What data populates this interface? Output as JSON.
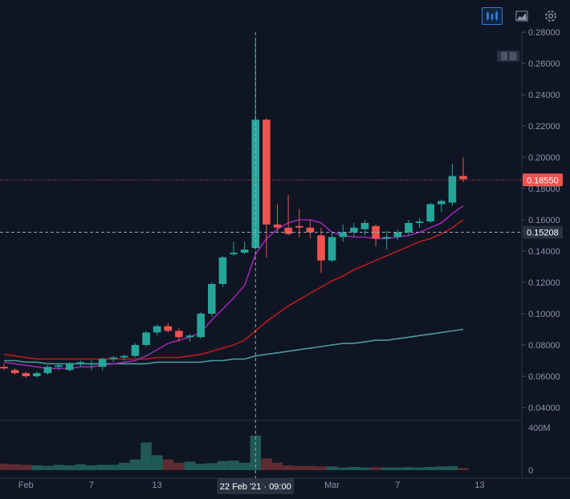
{
  "toolbar": {
    "candles_label": "Candles",
    "area_label": "Area",
    "settings_label": "Settings"
  },
  "chart_data": {
    "type": "candlestick",
    "title": "",
    "price_axis": {
      "min": 0.04,
      "max": 0.28,
      "ticks": [
        "0.28000",
        "0.26000",
        "0.24000",
        "0.22000",
        "0.20000",
        "0.18000",
        "0.16000",
        "0.14000",
        "0.12000",
        "0.10000",
        "0.08000",
        "0.06000",
        "0.04000"
      ]
    },
    "time_axis": {
      "labels": [
        "Feb",
        "7",
        "13",
        "Mar",
        "7",
        "13"
      ]
    },
    "volume_axis": {
      "labels": [
        "400M",
        "0"
      ]
    },
    "current_price": "0.18550",
    "crosshair_price": "0.15208",
    "crosshair_time": "22 Feb '21 · 09:00",
    "colors": {
      "up": "#26a69a",
      "down": "#ef5350",
      "ma_fast": "#9c27b0",
      "ma_mid": "#b71c1c",
      "ma_slow": "#4a9a9c"
    },
    "series": [
      {
        "name": "candles",
        "values": [
          [
            0.066,
            0.068,
            0.064,
            0.065
          ],
          [
            0.064,
            0.065,
            0.061,
            0.062
          ],
          [
            0.062,
            0.063,
            0.059,
            0.06
          ],
          [
            0.06,
            0.063,
            0.059,
            0.062
          ],
          [
            0.062,
            0.067,
            0.061,
            0.066
          ],
          [
            0.066,
            0.068,
            0.064,
            0.067
          ],
          [
            0.064,
            0.069,
            0.063,
            0.068
          ],
          [
            0.068,
            0.07,
            0.066,
            0.069
          ],
          [
            0.068,
            0.07,
            0.064,
            0.068
          ],
          [
            0.066,
            0.072,
            0.064,
            0.071
          ],
          [
            0.071,
            0.073,
            0.069,
            0.072
          ],
          [
            0.072,
            0.074,
            0.07,
            0.073
          ],
          [
            0.073,
            0.081,
            0.072,
            0.08
          ],
          [
            0.08,
            0.089,
            0.079,
            0.088
          ],
          [
            0.088,
            0.093,
            0.086,
            0.092
          ],
          [
            0.092,
            0.094,
            0.088,
            0.089
          ],
          [
            0.089,
            0.091,
            0.082,
            0.085
          ],
          [
            0.085,
            0.087,
            0.082,
            0.086
          ],
          [
            0.085,
            0.101,
            0.084,
            0.1
          ],
          [
            0.1,
            0.12,
            0.098,
            0.119
          ],
          [
            0.119,
            0.137,
            0.117,
            0.136
          ],
          [
            0.138,
            0.146,
            0.137,
            0.139
          ],
          [
            0.139,
            0.146,
            0.138,
            0.141
          ],
          [
            0.142,
            0.275,
            0.141,
            0.224
          ],
          [
            0.224,
            0.225,
            0.136,
            0.157
          ],
          [
            0.157,
            0.17,
            0.152,
            0.155
          ],
          [
            0.155,
            0.176,
            0.15,
            0.151
          ],
          [
            0.156,
            0.167,
            0.149,
            0.155
          ],
          [
            0.155,
            0.16,
            0.148,
            0.152
          ],
          [
            0.15,
            0.155,
            0.126,
            0.134
          ],
          [
            0.134,
            0.152,
            0.133,
            0.149
          ],
          [
            0.149,
            0.157,
            0.146,
            0.152
          ],
          [
            0.152,
            0.158,
            0.149,
            0.155
          ],
          [
            0.154,
            0.16,
            0.15,
            0.158
          ],
          [
            0.156,
            0.157,
            0.143,
            0.148
          ],
          [
            0.148,
            0.153,
            0.141,
            0.149
          ],
          [
            0.149,
            0.154,
            0.147,
            0.152
          ],
          [
            0.152,
            0.16,
            0.15,
            0.158
          ],
          [
            0.158,
            0.161,
            0.155,
            0.159
          ],
          [
            0.159,
            0.171,
            0.158,
            0.17
          ],
          [
            0.17,
            0.173,
            0.165,
            0.172
          ],
          [
            0.171,
            0.196,
            0.169,
            0.188
          ],
          [
            0.188,
            0.2,
            0.184,
            0.186
          ]
        ]
      },
      {
        "name": "ma_fast",
        "values": [
          0.069,
          0.068,
          0.067,
          0.066,
          0.065,
          0.065,
          0.065,
          0.066,
          0.066,
          0.067,
          0.068,
          0.069,
          0.07,
          0.073,
          0.077,
          0.081,
          0.083,
          0.085,
          0.088,
          0.096,
          0.103,
          0.11,
          0.118,
          0.138,
          0.148,
          0.154,
          0.158,
          0.16,
          0.16,
          0.158,
          0.152,
          0.15,
          0.149,
          0.149,
          0.148,
          0.148,
          0.149,
          0.15,
          0.152,
          0.155,
          0.158,
          0.164,
          0.169
        ]
      },
      {
        "name": "ma_mid",
        "values": [
          0.074,
          0.073,
          0.072,
          0.071,
          0.071,
          0.071,
          0.071,
          0.071,
          0.071,
          0.071,
          0.071,
          0.071,
          0.071,
          0.071,
          0.072,
          0.072,
          0.072,
          0.073,
          0.074,
          0.076,
          0.078,
          0.08,
          0.083,
          0.089,
          0.095,
          0.1,
          0.105,
          0.109,
          0.113,
          0.117,
          0.121,
          0.124,
          0.128,
          0.131,
          0.134,
          0.137,
          0.14,
          0.143,
          0.146,
          0.148,
          0.151,
          0.155,
          0.16
        ]
      },
      {
        "name": "ma_slow",
        "values": [
          0.07,
          0.07,
          0.069,
          0.069,
          0.068,
          0.068,
          0.068,
          0.068,
          0.068,
          0.068,
          0.068,
          0.068,
          0.068,
          0.068,
          0.069,
          0.069,
          0.069,
          0.069,
          0.069,
          0.07,
          0.07,
          0.071,
          0.071,
          0.073,
          0.074,
          0.075,
          0.076,
          0.077,
          0.078,
          0.079,
          0.08,
          0.081,
          0.081,
          0.082,
          0.083,
          0.083,
          0.084,
          0.085,
          0.086,
          0.087,
          0.088,
          0.089,
          0.09
        ]
      },
      {
        "name": "volume",
        "values": [
          60,
          55,
          50,
          45,
          40,
          50,
          45,
          55,
          45,
          50,
          50,
          70,
          100,
          260,
          140,
          100,
          70,
          80,
          60,
          65,
          85,
          90,
          70,
          325,
          110,
          70,
          45,
          40,
          40,
          35,
          35,
          25,
          30,
          25,
          28,
          26,
          25,
          28,
          25,
          30,
          35,
          38,
          20
        ]
      }
    ]
  }
}
